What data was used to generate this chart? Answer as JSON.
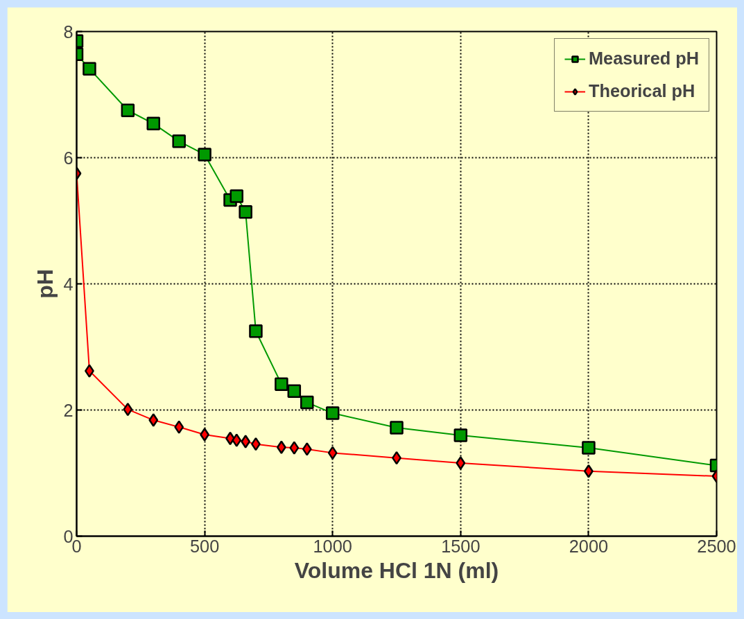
{
  "chart_data": {
    "type": "line",
    "xlabel": "Volume HCl 1N (ml)",
    "ylabel": "pH",
    "xlim": [
      0,
      2500
    ],
    "xticks": [
      0,
      500,
      1000,
      1500,
      2000,
      2500
    ],
    "ylim": [
      0,
      8
    ],
    "yticks": [
      0,
      2,
      4,
      6,
      8
    ],
    "grid": true,
    "legend": "top right",
    "series": [
      {
        "name": "Measured pH",
        "color": "#009900",
        "marker": "square",
        "x": [
          0,
          0,
          50,
          200,
          300,
          400,
          500,
          600,
          625,
          660,
          700,
          800,
          850,
          900,
          1000,
          1250,
          1500,
          2000,
          2500
        ],
        "values": [
          7.85,
          7.64,
          7.41,
          6.75,
          6.54,
          6.26,
          6.05,
          5.33,
          5.39,
          5.14,
          3.25,
          2.41,
          2.3,
          2.12,
          1.95,
          1.72,
          1.6,
          1.4,
          1.12
        ]
      },
      {
        "name": "Theorical pH",
        "color": "#ff0000",
        "marker": "diamond",
        "x": [
          0,
          50,
          200,
          300,
          400,
          500,
          600,
          625,
          660,
          700,
          800,
          850,
          900,
          1000,
          1250,
          1500,
          2000,
          2500
        ],
        "values": [
          5.75,
          2.62,
          2.01,
          1.84,
          1.73,
          1.61,
          1.55,
          1.52,
          1.5,
          1.46,
          1.41,
          1.4,
          1.38,
          1.32,
          1.24,
          1.16,
          1.03,
          0.95
        ]
      }
    ]
  }
}
